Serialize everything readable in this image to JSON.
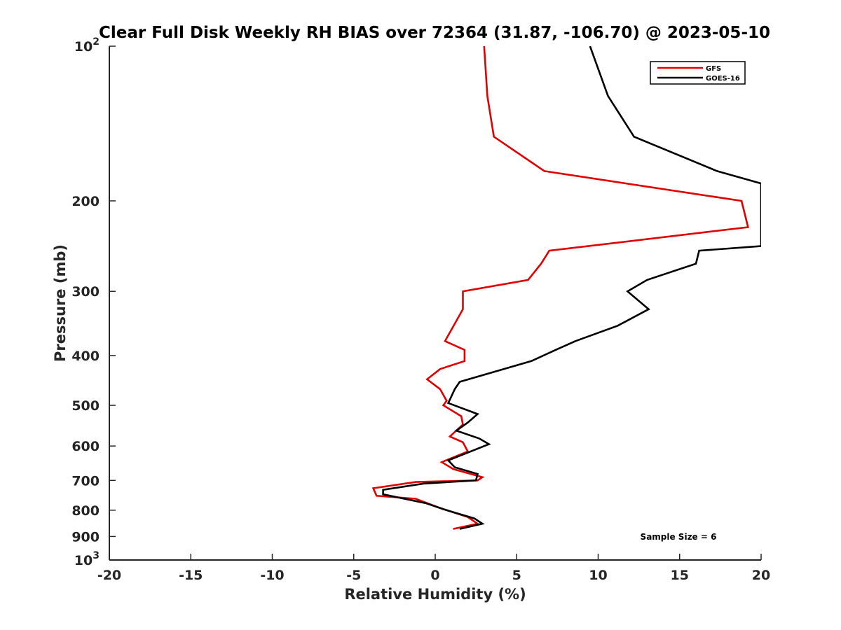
{
  "chart_data": {
    "type": "line",
    "title": "Clear Full Disk Weekly RH BIAS over 72364 (31.87, -106.70) @ 2023-05-10",
    "xlabel": "Relative Humidity (%)",
    "ylabel": "Pressure (mb)",
    "xlim": [
      -20,
      20
    ],
    "ylim": [
      1000,
      100
    ],
    "y_scale": "log",
    "y_reversed": true,
    "grid": false,
    "legend_position": "top-right",
    "x_ticks": [
      "-20",
      "-15",
      "-10",
      "-5",
      "0",
      "5",
      "10",
      "15",
      "20"
    ],
    "y_ticks": [
      {
        "value": 100,
        "base": "10",
        "exp": "2"
      },
      {
        "value": 200,
        "label": "200"
      },
      {
        "value": 300,
        "label": "300"
      },
      {
        "value": 400,
        "label": "400"
      },
      {
        "value": 500,
        "label": "500"
      },
      {
        "value": 600,
        "label": "600"
      },
      {
        "value": 700,
        "label": "700"
      },
      {
        "value": 800,
        "label": "800"
      },
      {
        "value": 900,
        "label": "900"
      },
      {
        "value": 1000,
        "base": "10",
        "exp": "3"
      }
    ],
    "series": [
      {
        "name": "GFS",
        "color": "#e00000",
        "points": [
          [
            3.0,
            100
          ],
          [
            3.2,
            125
          ],
          [
            3.6,
            150
          ],
          [
            6.7,
            175
          ],
          [
            18.8,
            200
          ],
          [
            19.2,
            225
          ],
          [
            7.0,
            250
          ],
          [
            6.5,
            265
          ],
          [
            5.7,
            285
          ],
          [
            1.7,
            300
          ],
          [
            1.7,
            325
          ],
          [
            0.6,
            375
          ],
          [
            1.8,
            390
          ],
          [
            1.8,
            410
          ],
          [
            0.3,
            425
          ],
          [
            -0.5,
            445
          ],
          [
            0.3,
            465
          ],
          [
            0.7,
            490
          ],
          [
            0.5,
            500
          ],
          [
            1.6,
            525
          ],
          [
            1.7,
            545
          ],
          [
            0.9,
            575
          ],
          [
            1.7,
            590
          ],
          [
            2.0,
            615
          ],
          [
            0.4,
            645
          ],
          [
            1.1,
            665
          ],
          [
            2.9,
            690
          ],
          [
            2.6,
            700
          ],
          [
            -1.2,
            705
          ],
          [
            -3.8,
            725
          ],
          [
            -3.6,
            750
          ],
          [
            -1.2,
            760
          ],
          [
            0.2,
            790
          ],
          [
            2.0,
            825
          ],
          [
            2.6,
            850
          ],
          [
            1.1,
            870
          ]
        ]
      },
      {
        "name": "GOES-16",
        "color": "#000000",
        "points": [
          [
            9.5,
            100
          ],
          [
            10.6,
            125
          ],
          [
            12.2,
            150
          ],
          [
            17.3,
            175
          ],
          [
            20.0,
            185
          ],
          [
            20.0,
            245
          ],
          [
            16.2,
            250
          ],
          [
            16.0,
            265
          ],
          [
            13.0,
            285
          ],
          [
            11.8,
            300
          ],
          [
            13.1,
            325
          ],
          [
            11.2,
            350
          ],
          [
            8.6,
            375
          ],
          [
            7.4,
            390
          ],
          [
            5.9,
            410
          ],
          [
            1.5,
            450
          ],
          [
            1.2,
            465
          ],
          [
            0.8,
            495
          ],
          [
            2.6,
            520
          ],
          [
            2.0,
            540
          ],
          [
            1.3,
            560
          ],
          [
            2.7,
            580
          ],
          [
            3.3,
            595
          ],
          [
            0.8,
            640
          ],
          [
            1.2,
            660
          ],
          [
            2.6,
            680
          ],
          [
            2.5,
            700
          ],
          [
            -0.7,
            710
          ],
          [
            -3.2,
            730
          ],
          [
            -3.2,
            745
          ],
          [
            -0.6,
            775
          ],
          [
            0.7,
            800
          ],
          [
            2.4,
            830
          ],
          [
            2.9,
            850
          ],
          [
            1.5,
            870
          ]
        ]
      }
    ],
    "annotations": [
      "Sample Size = 6"
    ]
  }
}
